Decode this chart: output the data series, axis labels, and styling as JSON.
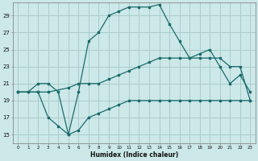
{
  "xlabel": "Humidex (Indice chaleur)",
  "bg_color": "#cce8e8",
  "grid_color": "#aacccc",
  "line_color": "#1a6b6b",
  "xlim": [
    -0.5,
    23.5
  ],
  "ylim": [
    14,
    30.5
  ],
  "xticks": [
    0,
    1,
    2,
    3,
    4,
    5,
    6,
    7,
    8,
    9,
    10,
    11,
    12,
    13,
    14,
    15,
    16,
    17,
    18,
    19,
    20,
    21,
    22,
    23
  ],
  "yticks": [
    15,
    17,
    19,
    21,
    23,
    25,
    27,
    29
  ],
  "line1_x": [
    0,
    1,
    2,
    3,
    4,
    5,
    6,
    7,
    8,
    9,
    10,
    11,
    12,
    13,
    14,
    15,
    16,
    17,
    18,
    19,
    20,
    21,
    22,
    23
  ],
  "line1_y": [
    20,
    20,
    21,
    21,
    20,
    15,
    20,
    26,
    27,
    29,
    29.5,
    30,
    30,
    30,
    30.3,
    28,
    26,
    24,
    24.5,
    25,
    23,
    21,
    22,
    20
  ],
  "line2_x": [
    0,
    1,
    2,
    3,
    5,
    6,
    7,
    8,
    9,
    10,
    11,
    12,
    13,
    14,
    15,
    16,
    17,
    18,
    19,
    20,
    21,
    22,
    23
  ],
  "line2_y": [
    20,
    20,
    20,
    20,
    20.5,
    21,
    21,
    21,
    21.5,
    22,
    22.5,
    23,
    23.5,
    24,
    24,
    24,
    24,
    24,
    24,
    24,
    23,
    23,
    19
  ],
  "line3_x": [
    0,
    2,
    3,
    4,
    5,
    6,
    7,
    8,
    9,
    10,
    11,
    12,
    13,
    14,
    15,
    16,
    17,
    18,
    19,
    20,
    21,
    22,
    23
  ],
  "line3_y": [
    20,
    20,
    17,
    16,
    15,
    15.5,
    17,
    17.5,
    18,
    18.5,
    19,
    19,
    19,
    19,
    19,
    19,
    19,
    19,
    19,
    19,
    19,
    19,
    19
  ]
}
